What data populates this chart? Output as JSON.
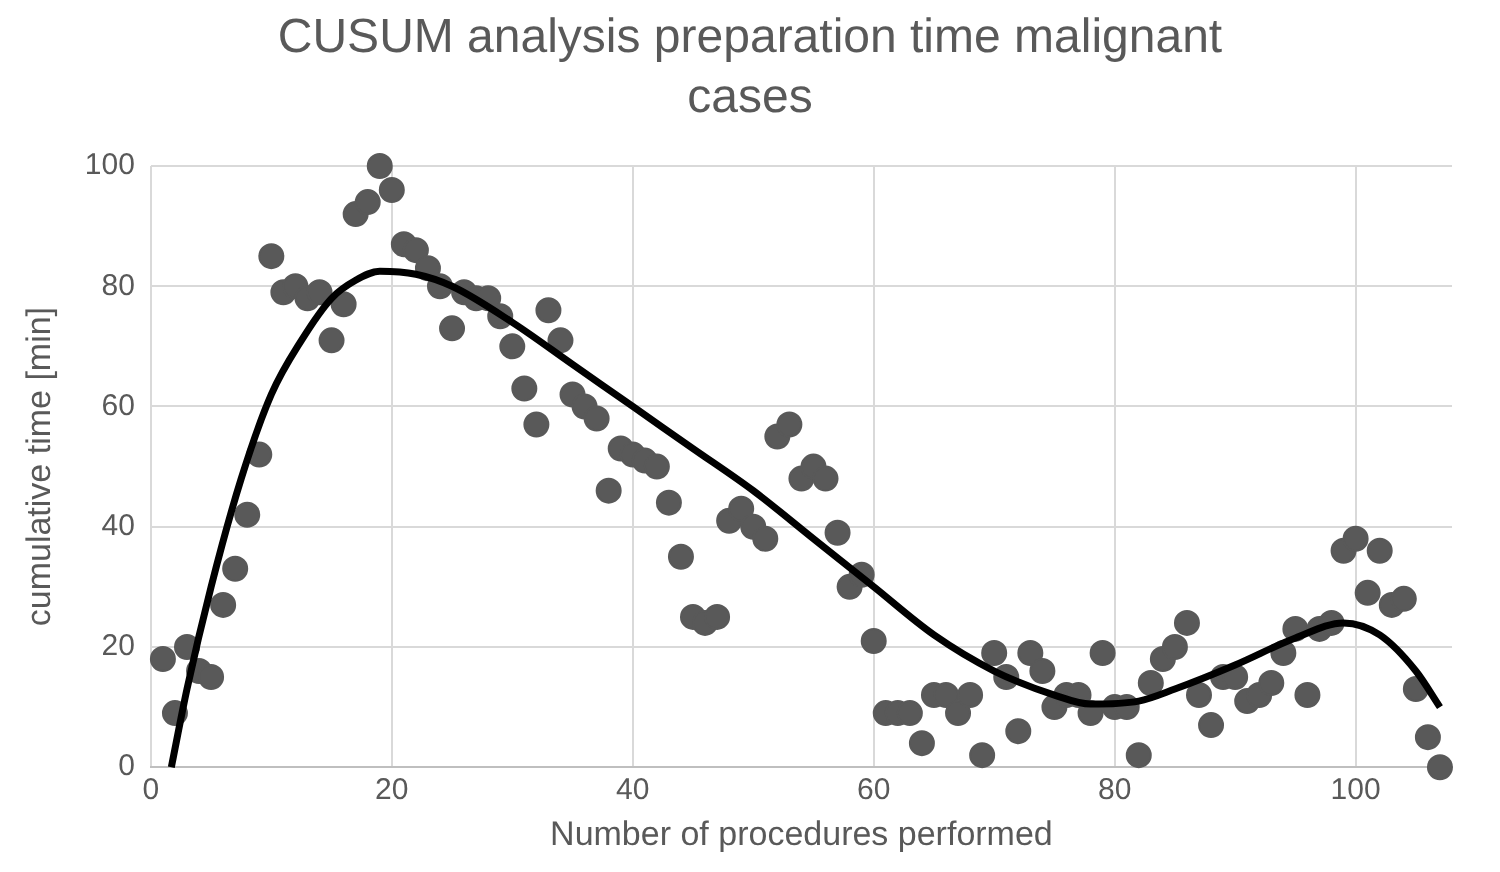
{
  "chart_data": {
    "type": "scatter",
    "title": "CUSUM analysis preparation time malignant cases",
    "xlabel": "Number of procedures performed",
    "ylabel": "cumulative time [min]",
    "xlim": [
      0,
      108
    ],
    "xticks": [
      0,
      20,
      40,
      60,
      80,
      100
    ],
    "ylim": [
      0,
      100
    ],
    "yticks": [
      0,
      20,
      40,
      60,
      80,
      100
    ],
    "grid": true,
    "legend": false,
    "marker": "circle",
    "series": [
      {
        "color": "#595959",
        "x": [
          1,
          2,
          3,
          4,
          5,
          6,
          7,
          8,
          9,
          10,
          11,
          12,
          13,
          14,
          15,
          16,
          17,
          18,
          19,
          20,
          21,
          22,
          23,
          24,
          25,
          26,
          27,
          28,
          29,
          30,
          31,
          32,
          33,
          34,
          35,
          36,
          37,
          38,
          39,
          40,
          41,
          42,
          43,
          44,
          45,
          46,
          47,
          48,
          49,
          50,
          51,
          52,
          53,
          54,
          55,
          56,
          57,
          58,
          59,
          60,
          61,
          62,
          63,
          64,
          65,
          66,
          67,
          68,
          69,
          70,
          71,
          72,
          73,
          74,
          75,
          76,
          77,
          78,
          79,
          80,
          81,
          82,
          83,
          84,
          85,
          86,
          87,
          88,
          89,
          90,
          91,
          92,
          93,
          94,
          95,
          96,
          97,
          98,
          99,
          100,
          101,
          102,
          103,
          104,
          105,
          106,
          107
        ],
        "values": [
          18,
          9,
          20,
          16,
          15,
          27,
          33,
          42,
          52,
          85,
          79,
          80,
          78,
          79,
          71,
          77,
          92,
          94,
          100,
          96,
          87,
          86,
          83,
          80,
          73,
          79,
          78,
          78,
          75,
          70,
          63,
          57,
          76,
          71,
          62,
          60,
          58,
          46,
          53,
          52,
          51,
          50,
          44,
          35,
          25,
          24,
          25,
          41,
          43,
          40,
          38,
          55,
          57,
          48,
          50,
          48,
          39,
          30,
          32,
          21,
          9,
          9,
          9,
          4,
          12,
          12,
          9,
          12,
          2,
          19,
          15,
          6,
          19,
          16,
          10,
          12,
          12,
          9,
          19,
          10,
          10,
          2,
          14,
          18,
          20,
          24,
          12,
          7,
          15,
          15,
          11,
          12,
          14,
          19,
          23,
          12,
          23,
          24,
          36,
          38,
          29,
          36,
          27,
          28,
          13,
          5,
          0
        ]
      },
      {
        "type": "line",
        "color": "#000000",
        "marker": "none",
        "x": [
          1.7,
          3,
          5,
          7.5,
          10,
          12.5,
          15,
          17,
          19,
          22,
          25,
          30,
          35,
          40,
          45,
          50,
          55,
          60,
          65,
          70,
          75,
          78,
          82,
          85,
          90,
          95,
          99,
          102,
          105,
          107
        ],
        "values": [
          0,
          13,
          30,
          48,
          62,
          71,
          78,
          81,
          82.5,
          82,
          80,
          74,
          67,
          60,
          53,
          46,
          38,
          30,
          22,
          16,
          12,
          10.5,
          11,
          13,
          17,
          21.5,
          24,
          22,
          16,
          10
        ]
      }
    ]
  }
}
